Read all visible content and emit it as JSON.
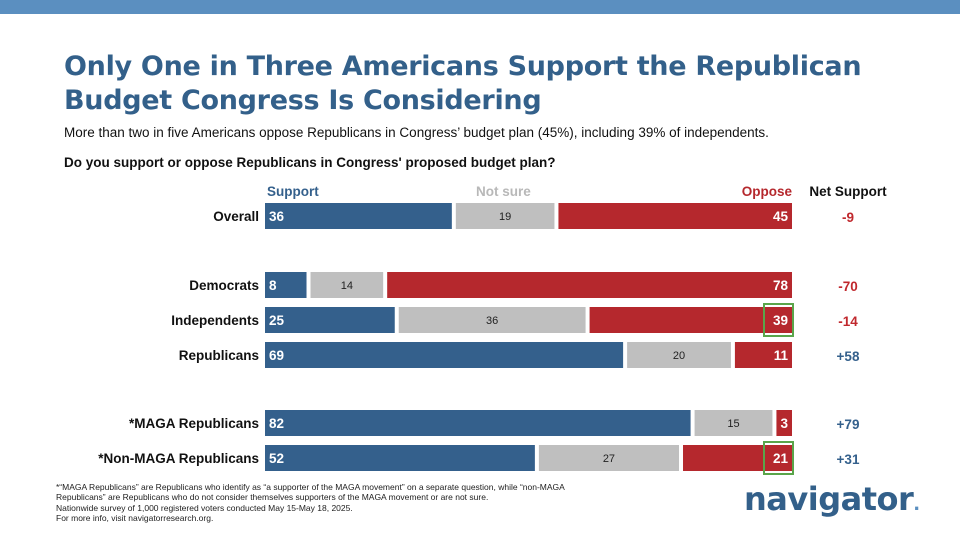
{
  "header": {
    "title": "Only One in Three Americans Support the Republican Budget Congress Is Considering",
    "subtitle": "More than two in five Americans oppose Republicans in Congress’ budget plan (45%), including 39% of independents.",
    "question": "Do you support or oppose Republicans in Congress' proposed budget plan?"
  },
  "chart_data": {
    "type": "bar",
    "orientation": "horizontal-stacked",
    "categories": [
      "Overall",
      "Democrats",
      "Independents",
      "Republicans",
      "*MAGA Republicans",
      "*Non-MAGA Republicans"
    ],
    "series": [
      {
        "name": "Support",
        "color": "#34608c",
        "values": [
          36,
          8,
          25,
          69,
          82,
          52
        ]
      },
      {
        "name": "Not sure",
        "color": "#bfbfbf",
        "values": [
          19,
          14,
          36,
          20,
          15,
          27
        ]
      },
      {
        "name": "Oppose",
        "color": "#b5282d",
        "values": [
          45,
          78,
          39,
          11,
          3,
          21
        ]
      }
    ],
    "net_support": {
      "header": "Net Support",
      "values": [
        "-9",
        "-70",
        "-14",
        "+58",
        "+79",
        "+31"
      ]
    },
    "highlighted": [
      {
        "category": "Independents",
        "series": "Oppose"
      },
      {
        "category": "*Non-MAGA Republicans",
        "series": "Oppose"
      }
    ],
    "colors": {
      "legend_not_sure": "#b8b8b8",
      "net_negative": "#c0282d",
      "net_positive": "#34608c",
      "highlight": "#5aa54a"
    }
  },
  "footnotes": [
    "*“MAGA Republicans” are Republicans who identify as “a supporter of the MAGA movement” on a separate question, while “non-MAGA Republicans” are Republicans who do not consider themselves supporters of the MAGA movement or are not sure.",
    "Nationwide survey of 1,000 registered voters conducted May 15-May 18, 2025.",
    "For more info, visit navigatorresearch.org."
  ],
  "brand": {
    "name": "navigator",
    "dot": "."
  }
}
